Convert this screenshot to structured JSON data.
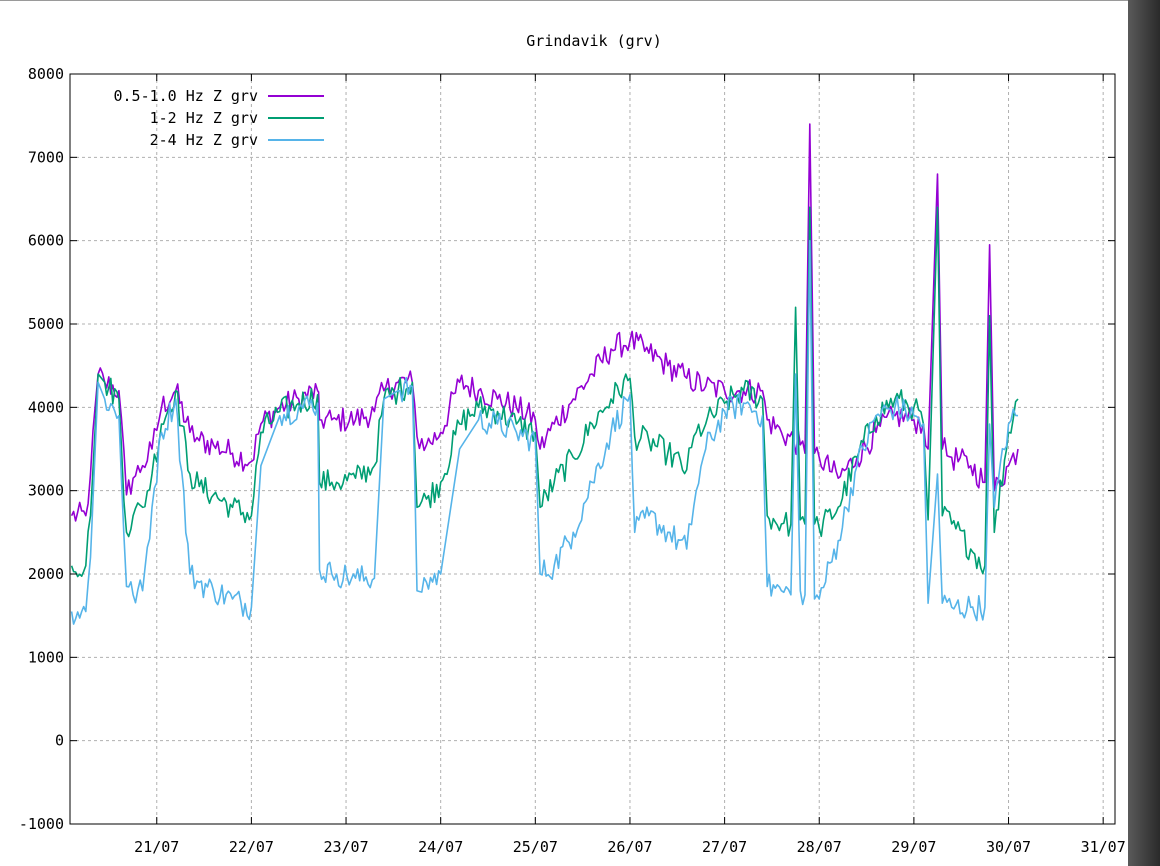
{
  "chart_data": {
    "type": "line",
    "title": "Grindavik (grv)",
    "xlabel": "",
    "ylabel": "",
    "ylim": [
      -1000,
      8000
    ],
    "yticks": [
      -1000,
      0,
      1000,
      2000,
      3000,
      4000,
      5000,
      6000,
      7000,
      8000
    ],
    "xlim": [
      "2023-07-20T02:00",
      "2023-07-31T03:00"
    ],
    "xticks": [
      "21/07",
      "22/07",
      "23/07",
      "24/07",
      "25/07",
      "26/07",
      "27/07",
      "28/07",
      "29/07",
      "30/07",
      "31/07"
    ],
    "grid": true,
    "legend_position": "top-left",
    "series": [
      {
        "name": "0.5-1.0 Hz Z grv",
        "color": "#9400d3",
        "x": [
          20.1,
          20.25,
          20.3,
          20.38,
          20.45,
          20.6,
          20.68,
          20.75,
          20.85,
          20.95,
          21.05,
          21.2,
          21.35,
          21.45,
          21.6,
          21.8,
          22.0,
          22.1,
          22.3,
          22.5,
          22.7,
          22.72,
          22.85,
          22.9,
          23.1,
          23.3,
          23.4,
          23.55,
          23.7,
          23.75,
          23.85,
          24.0,
          24.2,
          24.4,
          24.6,
          24.8,
          25.0,
          25.05,
          25.2,
          25.4,
          25.6,
          25.8,
          26.0,
          26.2,
          26.4,
          26.6,
          26.8,
          27.0,
          27.2,
          27.4,
          27.45,
          27.6,
          27.8,
          27.85,
          27.9,
          27.95,
          28.0,
          28.2,
          28.4,
          28.6,
          28.8,
          29.0,
          29.1,
          29.15,
          29.25,
          29.3,
          29.4,
          29.6,
          29.75,
          29.8,
          29.85,
          30.0,
          30.1
        ],
        "y": [
          2700,
          2700,
          3200,
          4400,
          4300,
          4200,
          2950,
          3150,
          3300,
          3500,
          4000,
          4200,
          3700,
          3600,
          3550,
          3450,
          3350,
          3800,
          4000,
          4100,
          4200,
          3850,
          3850,
          3850,
          3850,
          3950,
          4200,
          4300,
          4300,
          3650,
          3550,
          3700,
          4300,
          4200,
          4100,
          4000,
          3850,
          3500,
          3800,
          4100,
          4400,
          4700,
          4800,
          4650,
          4500,
          4350,
          4250,
          4200,
          4200,
          4200,
          3850,
          3700,
          3550,
          3450,
          7400,
          3450,
          3400,
          3150,
          3400,
          3700,
          3900,
          3850,
          3800,
          3500,
          6800,
          3500,
          3400,
          3300,
          3100,
          5950,
          3000,
          3300,
          3500
        ]
      },
      {
        "name": "1-2 Hz Z grv",
        "color": "#009e73",
        "x": [
          20.1,
          20.25,
          20.3,
          20.38,
          20.45,
          20.6,
          20.68,
          20.75,
          20.85,
          20.95,
          21.05,
          21.2,
          21.35,
          21.45,
          21.6,
          21.8,
          22.0,
          22.1,
          22.3,
          22.5,
          22.7,
          22.72,
          22.85,
          22.9,
          23.1,
          23.3,
          23.4,
          23.55,
          23.7,
          23.75,
          23.85,
          24.0,
          24.2,
          24.4,
          24.6,
          24.8,
          25.0,
          25.05,
          25.2,
          25.4,
          25.6,
          25.8,
          26.0,
          26.05,
          26.2,
          26.4,
          26.6,
          26.7,
          26.8,
          27.0,
          27.2,
          27.4,
          27.45,
          27.6,
          27.7,
          27.75,
          27.8,
          27.85,
          27.9,
          27.95,
          28.0,
          28.2,
          28.4,
          28.6,
          28.8,
          29.0,
          29.1,
          29.15,
          29.25,
          29.3,
          29.4,
          29.6,
          29.75,
          29.8,
          29.85,
          30.0,
          30.1
        ],
        "y": [
          2100,
          2100,
          2700,
          4400,
          4300,
          4100,
          2500,
          2700,
          2800,
          3200,
          3800,
          4200,
          3200,
          3050,
          2950,
          2800,
          2700,
          3700,
          3950,
          4050,
          4150,
          3100,
          3100,
          3100,
          3150,
          3300,
          4100,
          4200,
          4300,
          2800,
          2900,
          3100,
          3800,
          4000,
          3950,
          3800,
          3700,
          2800,
          3100,
          3400,
          3800,
          4100,
          4350,
          3650,
          3600,
          3450,
          3250,
          3700,
          3800,
          4050,
          4200,
          4100,
          2700,
          2600,
          2600,
          5200,
          2650,
          2600,
          6400,
          2600,
          2550,
          2800,
          3400,
          3900,
          4100,
          4000,
          3800,
          2650,
          6400,
          2700,
          2600,
          2300,
          2100,
          5100,
          2500,
          3700,
          4100
        ]
      },
      {
        "name": "2-4 Hz Z grv",
        "color": "#56b4e9",
        "x": [
          20.1,
          20.25,
          20.3,
          20.38,
          20.45,
          20.6,
          20.68,
          20.75,
          20.85,
          20.95,
          21.05,
          21.2,
          21.35,
          21.45,
          21.6,
          21.8,
          22.0,
          22.1,
          22.3,
          22.5,
          22.7,
          22.72,
          22.85,
          22.9,
          23.1,
          23.3,
          23.4,
          23.55,
          23.7,
          23.75,
          23.85,
          24.0,
          24.2,
          24.4,
          24.6,
          24.8,
          25.0,
          25.05,
          25.2,
          25.4,
          25.6,
          25.8,
          26.0,
          26.05,
          26.2,
          26.4,
          26.6,
          26.7,
          26.8,
          27.0,
          27.2,
          27.4,
          27.45,
          27.6,
          27.7,
          27.75,
          27.8,
          27.85,
          27.9,
          27.95,
          28.0,
          28.2,
          28.4,
          28.6,
          28.8,
          29.0,
          29.1,
          29.15,
          29.25,
          29.3,
          29.4,
          29.6,
          29.75,
          29.8,
          29.85,
          30.0,
          30.1
        ],
        "y": [
          1550,
          1550,
          2200,
          4300,
          4100,
          3900,
          1850,
          1750,
          1800,
          2800,
          3700,
          4100,
          2000,
          1900,
          1800,
          1700,
          1600,
          3300,
          3900,
          4000,
          4050,
          2050,
          2000,
          2000,
          1950,
          1950,
          4100,
          4200,
          4250,
          1800,
          1900,
          2000,
          3500,
          3850,
          3800,
          3700,
          3600,
          2000,
          2100,
          2500,
          3100,
          3700,
          4150,
          2500,
          2700,
          2500,
          2300,
          3000,
          3500,
          3950,
          4050,
          3900,
          1850,
          1800,
          1750,
          4400,
          1800,
          1750,
          6000,
          1700,
          1700,
          2400,
          3300,
          3900,
          4000,
          3900,
          3800,
          1650,
          3200,
          1650,
          1600,
          1600,
          1600,
          3800,
          2800,
          3800,
          3900
        ]
      }
    ]
  }
}
